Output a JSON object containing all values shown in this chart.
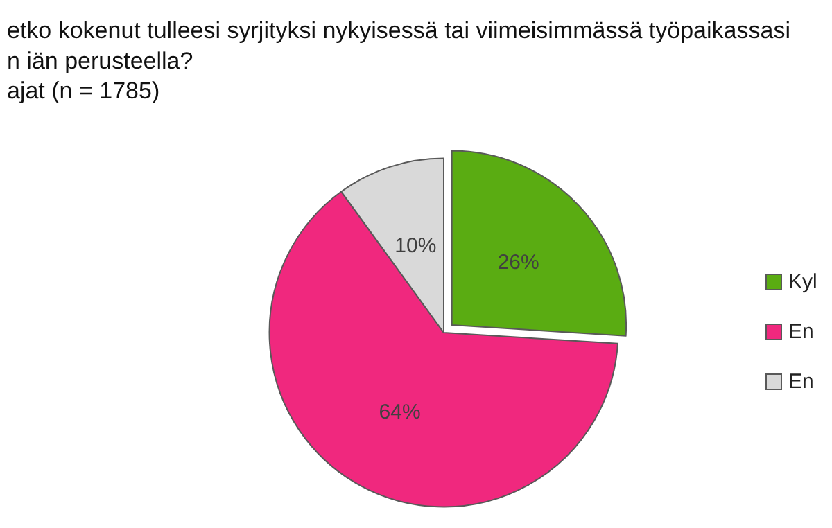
{
  "chart_data": {
    "type": "pie",
    "title": "etko kokenut tulleesi syrjityksi nykyisessä tai viimeisimmässä työpaikassasi\nn iän perusteella?",
    "subtitle": "ajat (n = 1785)",
    "categories": [
      "Kyl",
      "En",
      "En"
    ],
    "values": [
      26,
      64,
      10
    ],
    "colors": [
      "#5aac12",
      "#f0287e",
      "#d9d9d9"
    ],
    "value_labels": [
      "26%",
      "64%",
      "10%"
    ],
    "legend": "right"
  }
}
